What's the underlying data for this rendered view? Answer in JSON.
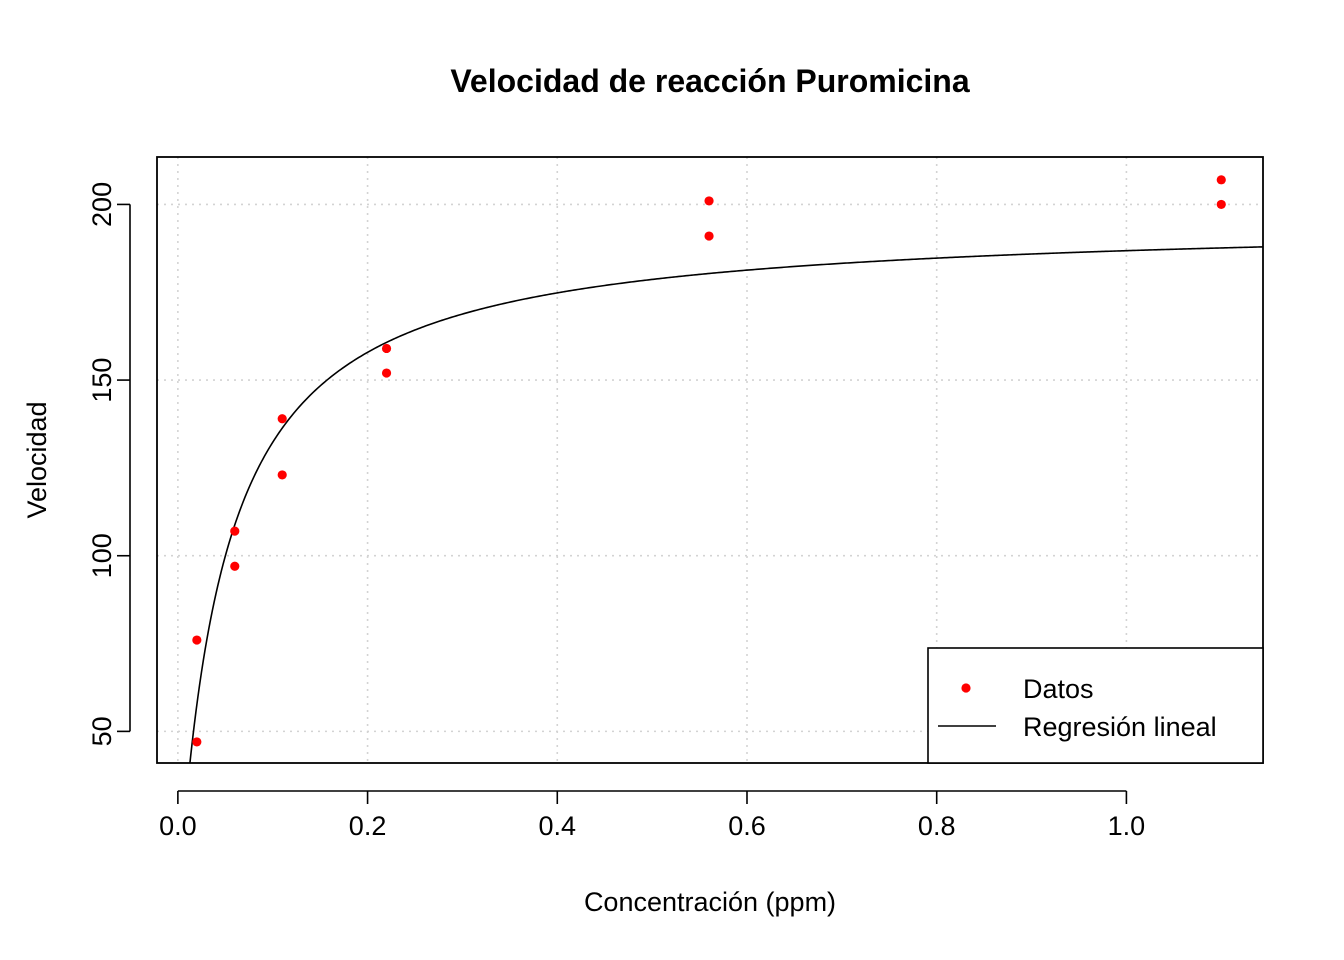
{
  "chart_data": {
    "type": "scatter",
    "title": "Velocidad de reacción Puromicina",
    "xlabel": "Concentración (ppm)",
    "ylabel": "Velocidad",
    "xlim": [
      -0.022,
      1.144
    ],
    "ylim": [
      41,
      213.5
    ],
    "x_ticks": [
      "0.0",
      "0.2",
      "0.4",
      "0.6",
      "0.8",
      "1.0"
    ],
    "y_ticks": [
      "50",
      "100",
      "150",
      "200"
    ],
    "grid": true,
    "legend_position": "bottom-right",
    "legend": [
      {
        "label": "Datos",
        "marker": "point",
        "color": "#ff0000"
      },
      {
        "label": "Regresión lineal",
        "marker": "line",
        "color": "#000000"
      }
    ],
    "series": [
      {
        "name": "Datos",
        "kind": "points",
        "color": "#ff0000",
        "x": [
          0.02,
          0.02,
          0.06,
          0.06,
          0.11,
          0.11,
          0.22,
          0.22,
          0.56,
          0.56,
          1.1,
          1.1
        ],
        "y": [
          76,
          47,
          97,
          107,
          123,
          139,
          159,
          152,
          191,
          201,
          207,
          200
        ]
      },
      {
        "name": "Regresión lineal",
        "kind": "curve",
        "color": "#000000",
        "model": "michaelis-menten",
        "vmax": 195.8,
        "km": 0.048
      }
    ]
  }
}
